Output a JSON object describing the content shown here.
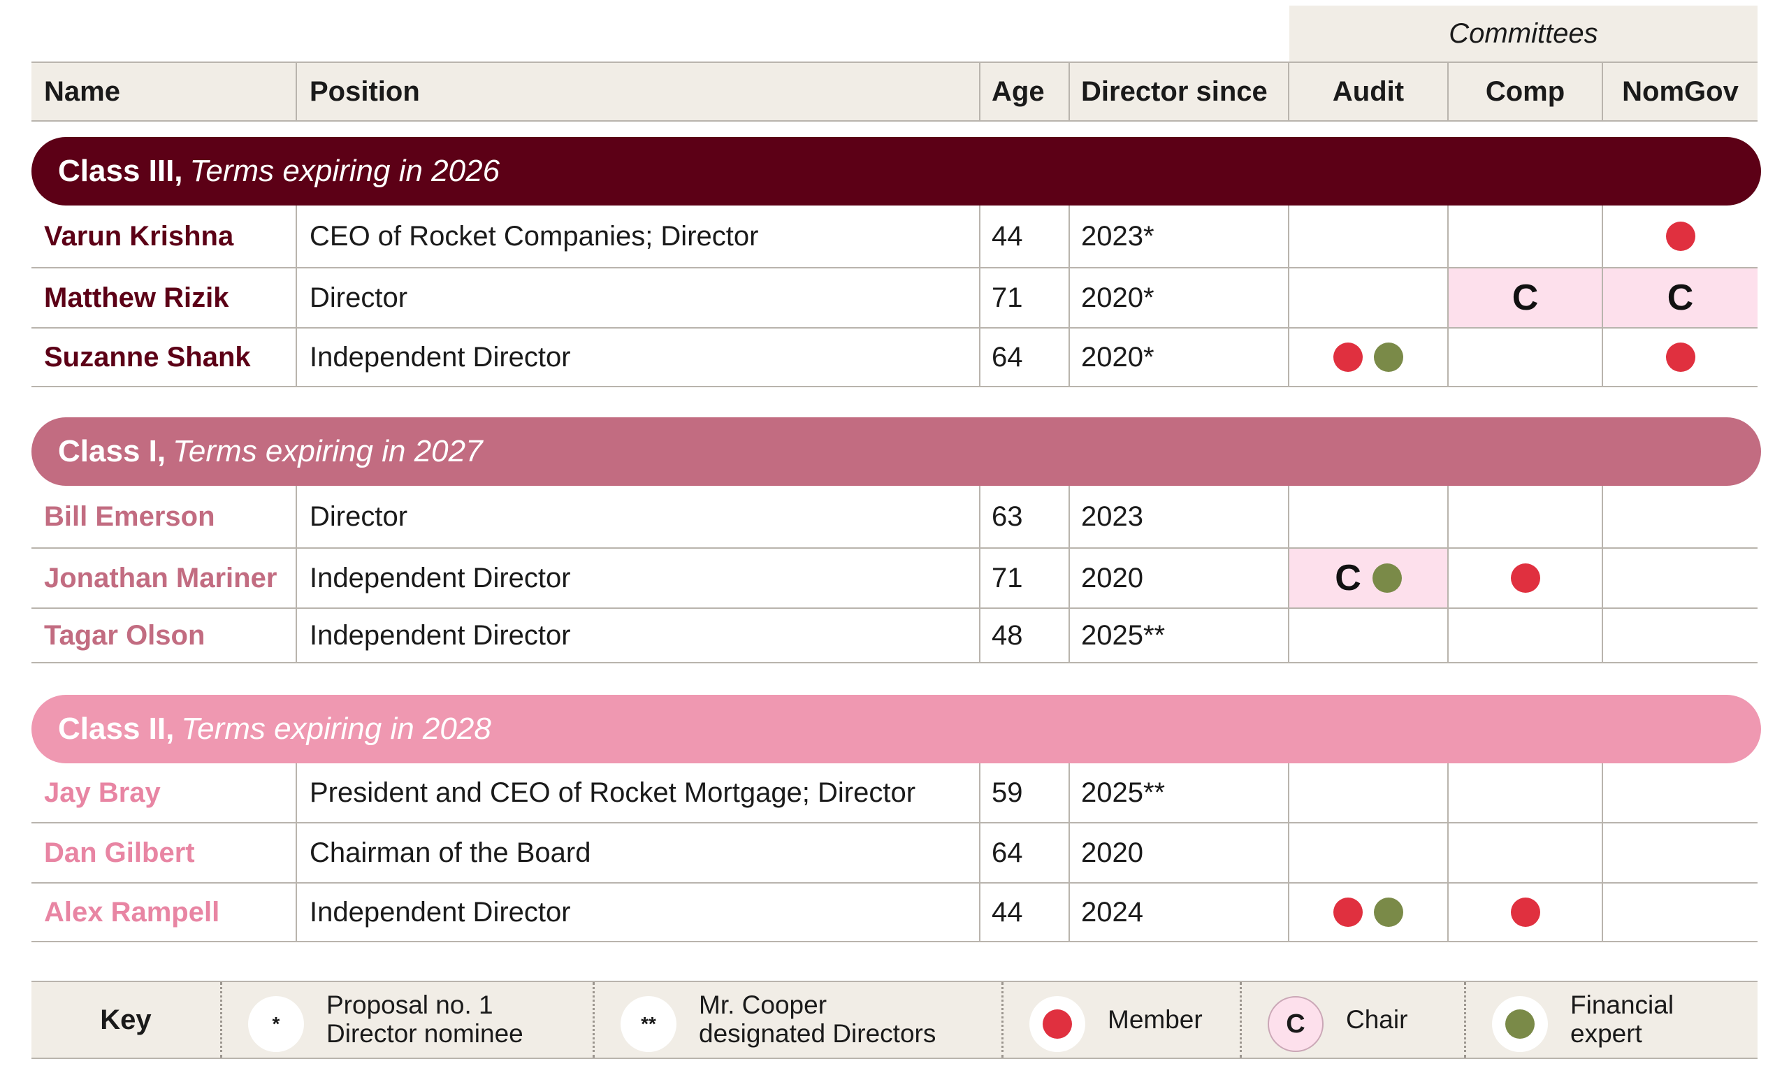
{
  "header": {
    "committees": "Committees",
    "name": "Name",
    "position": "Position",
    "age": "Age",
    "director_since": "Director since",
    "audit": "Audit",
    "comp": "Comp",
    "nomgov": "NomGov"
  },
  "classes": [
    {
      "label": "Class III,",
      "terms": "Terms expiring in 2026",
      "color": "#5c0016",
      "name_color": "#5c0016",
      "directors": [
        {
          "name": "Varun Krishna",
          "position": "CEO of Rocket Companies; Director",
          "age": "44",
          "since": "2023*",
          "audit": [],
          "comp": [],
          "nomgov": [
            "member"
          ]
        },
        {
          "name": "Matthew Rizik",
          "position": "Director",
          "age": "71",
          "since": "2020*",
          "audit": [],
          "comp": [
            "chair"
          ],
          "nomgov": [
            "chair"
          ]
        },
        {
          "name": "Suzanne Shank",
          "position": "Independent Director",
          "age": "64",
          "since": "2020*",
          "audit": [
            "member",
            "financial"
          ],
          "comp": [],
          "nomgov": [
            "member"
          ]
        }
      ]
    },
    {
      "label": "Class I,",
      "terms": "Terms expiring in 2027",
      "color": "#c26c81",
      "name_color": "#c26c81",
      "directors": [
        {
          "name": "Bill Emerson",
          "position": "Director",
          "age": "63",
          "since": "2023",
          "audit": [],
          "comp": [],
          "nomgov": []
        },
        {
          "name": "Jonathan Mariner",
          "position": "Independent Director",
          "age": "71",
          "since": "2020",
          "audit": [
            "chair",
            "financial"
          ],
          "comp": [
            "member"
          ],
          "nomgov": []
        },
        {
          "name": "Tagar Olson",
          "position": "Independent Director",
          "age": "48",
          "since": "2025**",
          "audit": [],
          "comp": [],
          "nomgov": []
        }
      ]
    },
    {
      "label": "Class II,",
      "terms": "Terms expiring in 2028",
      "color": "#ef98b1",
      "name_color": "#e885a3",
      "directors": [
        {
          "name": "Jay Bray",
          "position": "President and CEO of Rocket Mortgage; Director",
          "age": "59",
          "since": "2025**",
          "audit": [],
          "comp": [],
          "nomgov": []
        },
        {
          "name": "Dan Gilbert",
          "position": "Chairman of the Board",
          "age": "64",
          "since": "2020",
          "audit": [],
          "comp": [],
          "nomgov": []
        },
        {
          "name": "Alex Rampell",
          "position": "Independent Director",
          "age": "44",
          "since": "2024",
          "audit": [
            "member",
            "financial"
          ],
          "comp": [
            "member"
          ],
          "nomgov": []
        }
      ]
    }
  ],
  "key": {
    "title": "Key",
    "single_star_symbol": "*",
    "single_star_line1": "Proposal no. 1",
    "single_star_line2": "Director nominee",
    "double_star_symbol": "**",
    "double_star_line1": "Mr. Cooper",
    "double_star_line2": "designated Directors",
    "member": "Member",
    "chair_symbol": "C",
    "chair": "Chair",
    "financial_line1": "Financial",
    "financial_line2": "expert"
  },
  "colors": {
    "member": "#e0303f",
    "financial": "#7a8a48",
    "chair_highlight": "#fde0ec",
    "header_bg": "#f1ede6"
  }
}
